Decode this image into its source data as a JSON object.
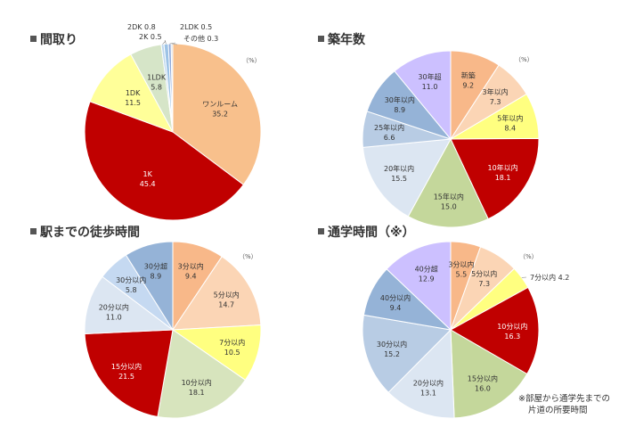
{
  "colors": {
    "title_square": "#555555",
    "slice_border": "#ffffff"
  },
  "chart_data": [
    {
      "type": "pie",
      "title": "間取り",
      "unit": "（%）",
      "slices": [
        {
          "label": "ワンルーム",
          "value": 35.2,
          "value_text": "35.2",
          "color": "#F8C08C",
          "text_color": "#333333"
        },
        {
          "label": "1K",
          "value": 45.4,
          "value_text": "45.4",
          "color": "#C00000",
          "text_color": "#ffffff"
        },
        {
          "label": "1DK",
          "value": 11.5,
          "value_text": "11.5",
          "color": "#FFFF99",
          "text_color": "#333333"
        },
        {
          "label": "1LDK",
          "value": 5.8,
          "value_text": "5.8",
          "color": "#D6E5C8",
          "text_color": "#333333"
        },
        {
          "label": "2K",
          "value": 0.5,
          "value_text": "0.5",
          "color": "#BDD7EE",
          "text_color": "#333333"
        },
        {
          "label": "2DK",
          "value": 0.8,
          "value_text": "0.8",
          "color": "#9DC3E6",
          "text_color": "#333333"
        },
        {
          "label": "2LDK",
          "value": 0.5,
          "value_text": "0.5",
          "color": "#8EA9DB",
          "text_color": "#333333"
        },
        {
          "label": "その他",
          "value": 0.3,
          "value_text": "0.3",
          "color": "#D9D9D9",
          "text_color": "#333333"
        }
      ]
    },
    {
      "type": "pie",
      "title": "築年数",
      "unit": "（%）",
      "slices": [
        {
          "label": "新築",
          "value": 9.2,
          "value_text": "9.2",
          "color": "#F8B889",
          "text_color": "#333333"
        },
        {
          "label": "3年以内",
          "value": 7.3,
          "value_text": "7.3",
          "color": "#FBD5B5",
          "text_color": "#333333"
        },
        {
          "label": "5年以内",
          "value": 8.4,
          "value_text": "8.4",
          "color": "#FFFF80",
          "text_color": "#333333"
        },
        {
          "label": "10年以内",
          "value": 18.1,
          "value_text": "18.1",
          "color": "#C00000",
          "text_color": "#ffffff"
        },
        {
          "label": "15年以内",
          "value": 15.0,
          "value_text": "15.0",
          "color": "#C4D79B",
          "text_color": "#333333"
        },
        {
          "label": "20年以内",
          "value": 15.5,
          "value_text": "15.5",
          "color": "#DCE6F2",
          "text_color": "#333333"
        },
        {
          "label": "25年以内",
          "value": 6.6,
          "value_text": "6.6",
          "color": "#B8CCE4",
          "text_color": "#333333"
        },
        {
          "label": "30年以内",
          "value": 8.9,
          "value_text": "8.9",
          "color": "#95B3D7",
          "text_color": "#333333"
        },
        {
          "label": "30年超",
          "value": 11.0,
          "value_text": "11.0",
          "color": "#CCC0FF",
          "text_color": "#333333"
        }
      ]
    },
    {
      "type": "pie",
      "title": "駅までの徒歩時間",
      "unit": "（%）",
      "slices": [
        {
          "label": "3分以内",
          "value": 9.4,
          "value_text": "9.4",
          "color": "#F8B889",
          "text_color": "#333333"
        },
        {
          "label": "5分以内",
          "value": 14.7,
          "value_text": "14.7",
          "color": "#FBD5B5",
          "text_color": "#333333"
        },
        {
          "label": "7分以内",
          "value": 10.5,
          "value_text": "10.5",
          "color": "#FFFF80",
          "text_color": "#333333"
        },
        {
          "label": "10分以内",
          "value": 18.1,
          "value_text": "18.1",
          "color": "#D7E4BD",
          "text_color": "#333333"
        },
        {
          "label": "15分以内",
          "value": 21.5,
          "value_text": "21.5",
          "color": "#C00000",
          "text_color": "#ffffff"
        },
        {
          "label": "20分以内",
          "value": 11.0,
          "value_text": "11.0",
          "color": "#DCE6F2",
          "text_color": "#333333"
        },
        {
          "label": "30分以内",
          "value": 5.8,
          "value_text": "5.8",
          "color": "#C5D9F1",
          "text_color": "#333333"
        },
        {
          "label": "30分超",
          "value": 8.9,
          "value_text": "8.9",
          "color": "#95B3D7",
          "text_color": "#333333"
        }
      ]
    },
    {
      "type": "pie",
      "title": "通学時間（※）",
      "unit": "（%）",
      "note": [
        "※部屋から通学先までの",
        "片道の所要時間"
      ],
      "slices": [
        {
          "label": "3分以内",
          "value": 5.5,
          "value_text": "5.5",
          "color": "#F8B889",
          "text_color": "#333333"
        },
        {
          "label": "5分以内",
          "value": 7.3,
          "value_text": "7.3",
          "color": "#FBD5B5",
          "text_color": "#333333"
        },
        {
          "label": "7分以内",
          "value": 4.2,
          "value_text": "4.2",
          "color": "#FFFF80",
          "text_color": "#333333"
        },
        {
          "label": "10分以内",
          "value": 16.3,
          "value_text": "16.3",
          "color": "#C00000",
          "text_color": "#ffffff"
        },
        {
          "label": "15分以内",
          "value": 16.0,
          "value_text": "16.0",
          "color": "#C4D79B",
          "text_color": "#333333"
        },
        {
          "label": "20分以内",
          "value": 13.1,
          "value_text": "13.1",
          "color": "#DCE6F2",
          "text_color": "#333333"
        },
        {
          "label": "30分以内",
          "value": 15.2,
          "value_text": "15.2",
          "color": "#B8CCE4",
          "text_color": "#333333"
        },
        {
          "label": "40分以内",
          "value": 9.4,
          "value_text": "9.4",
          "color": "#95B3D7",
          "text_color": "#333333"
        },
        {
          "label": "40分超",
          "value": 12.9,
          "value_text": "12.9",
          "color": "#CCC0FF",
          "text_color": "#333333"
        }
      ]
    }
  ]
}
